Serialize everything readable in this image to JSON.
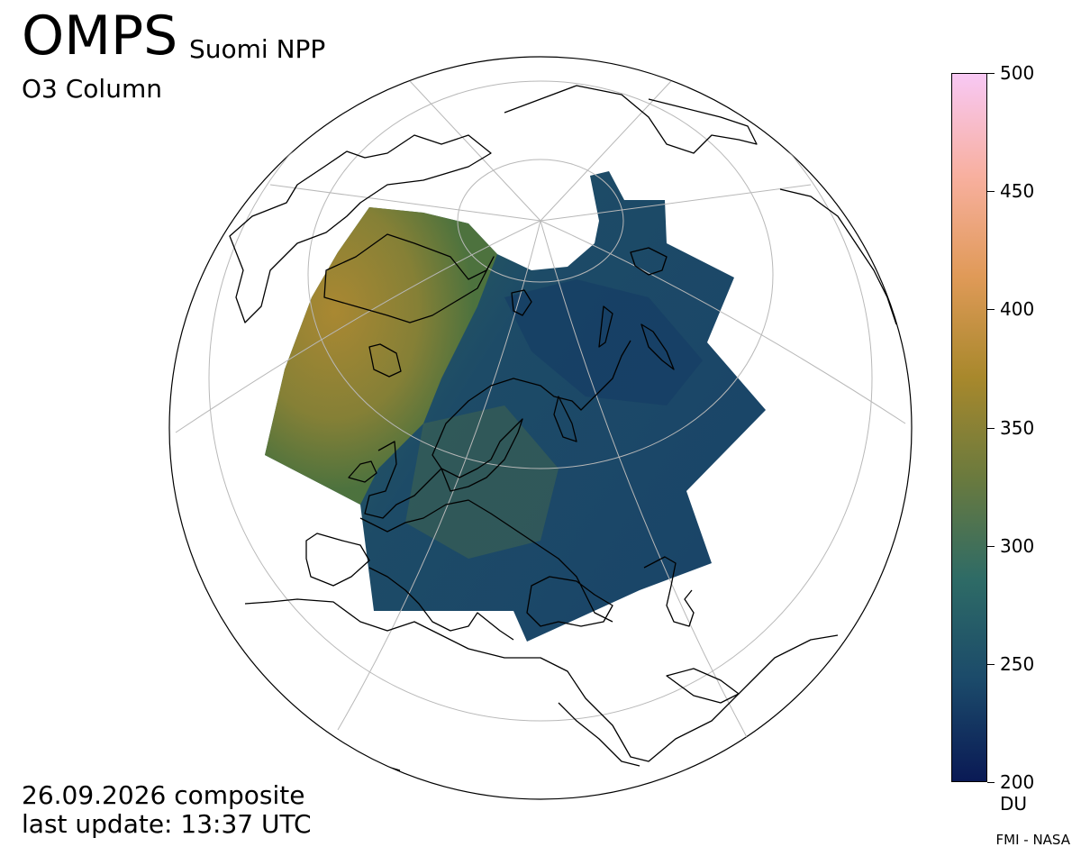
{
  "header": {
    "instrument": "OMPS",
    "satellite": "Suomi NPP",
    "product": "O3 Column"
  },
  "footer": {
    "date_line": "26.09.2026 composite",
    "update_line": "last update: 13:37 UTC",
    "credit": "FMI - NASA"
  },
  "colorbar": {
    "min": 200,
    "max": 500,
    "ticks": [
      "500",
      "450",
      "400",
      "350",
      "300",
      "250",
      "200"
    ],
    "unit": "DU",
    "stops": [
      "#0a1a55",
      "#1b4a6a",
      "#2e6b66",
      "#6a7a3e",
      "#a8882c",
      "#e09a58",
      "#f8b0a0",
      "#f8c8f4"
    ]
  },
  "map": {
    "projection": "orthographic, north polar view",
    "colors": {
      "ozone_low": "#1b4a68",
      "ozone_mid": "#2f6a60",
      "ozone_high": "#a8882c",
      "coastline": "#000000",
      "graticule": "#b8b8b8"
    }
  }
}
